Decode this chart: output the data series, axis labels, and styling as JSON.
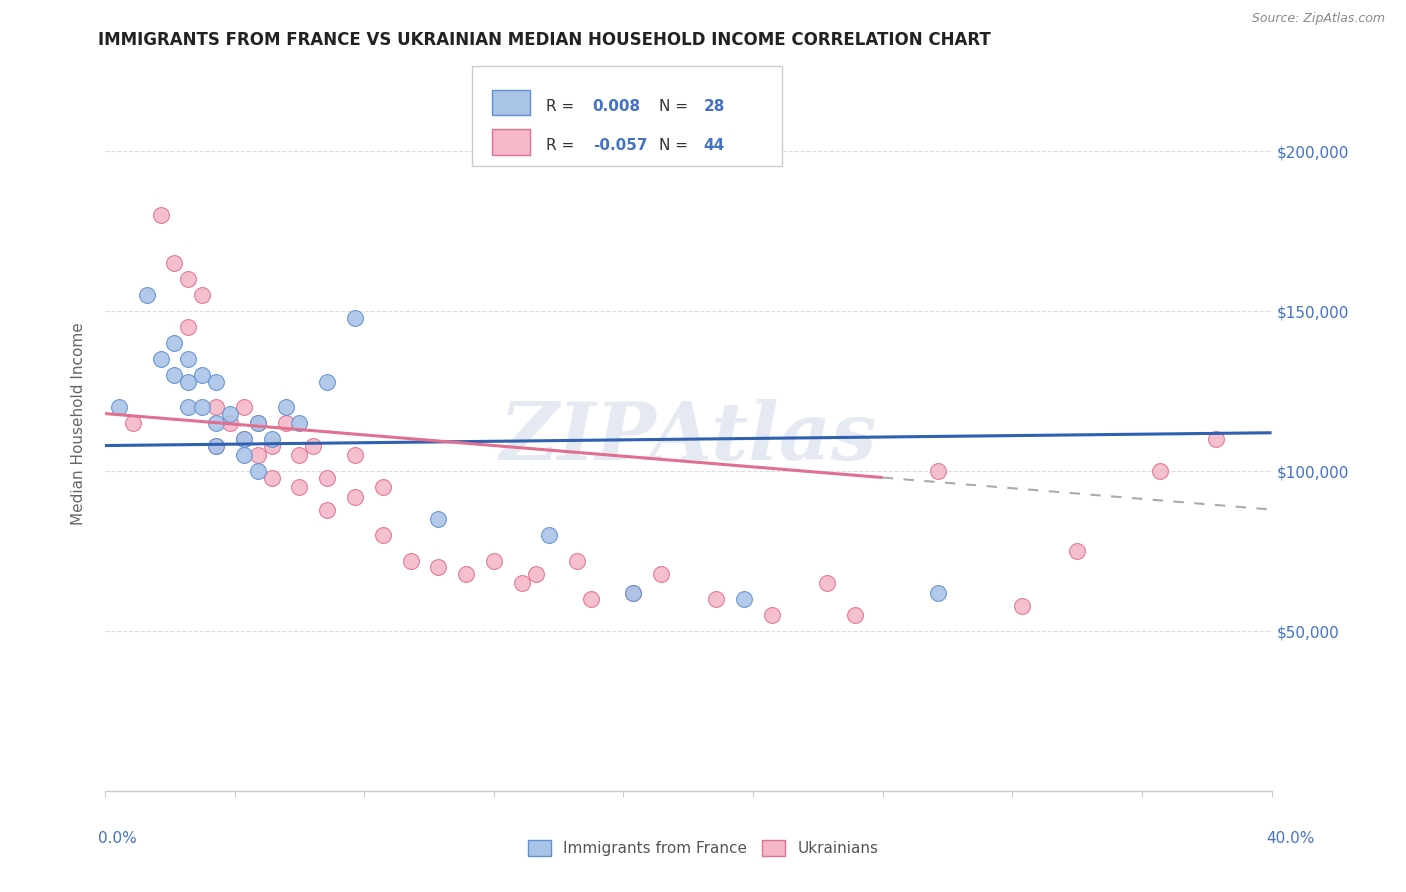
{
  "title": "IMMIGRANTS FROM FRANCE VS UKRAINIAN MEDIAN HOUSEHOLD INCOME CORRELATION CHART",
  "source": "Source: ZipAtlas.com",
  "ylabel": "Median Household Income",
  "yticks": [
    0,
    50000,
    100000,
    150000,
    200000
  ],
  "ytick_labels": [
    "",
    "$50,000",
    "$100,000",
    "$150,000",
    "$200,000"
  ],
  "xlim": [
    0.0,
    0.42
  ],
  "ylim": [
    0,
    230000
  ],
  "watermark": "ZIPAtlas",
  "color_france": "#aac4e8",
  "color_ukraine": "#f5b8c8",
  "color_france_edge": "#6090d0",
  "color_ukraine_edge": "#e07090",
  "color_france_line": "#3060b0",
  "color_ukraine_line": "#e07090",
  "france_scatter_x": [
    0.005,
    0.015,
    0.02,
    0.025,
    0.025,
    0.03,
    0.03,
    0.03,
    0.035,
    0.035,
    0.04,
    0.04,
    0.04,
    0.045,
    0.05,
    0.05,
    0.055,
    0.055,
    0.06,
    0.065,
    0.07,
    0.08,
    0.09,
    0.12,
    0.16,
    0.19,
    0.23,
    0.3
  ],
  "france_scatter_y": [
    120000,
    155000,
    135000,
    140000,
    130000,
    135000,
    128000,
    120000,
    130000,
    120000,
    128000,
    115000,
    108000,
    118000,
    110000,
    105000,
    115000,
    100000,
    110000,
    120000,
    115000,
    128000,
    148000,
    85000,
    80000,
    62000,
    60000,
    62000
  ],
  "ukraine_scatter_x": [
    0.01,
    0.02,
    0.025,
    0.03,
    0.03,
    0.035,
    0.04,
    0.04,
    0.045,
    0.05,
    0.05,
    0.055,
    0.055,
    0.06,
    0.06,
    0.065,
    0.07,
    0.07,
    0.075,
    0.08,
    0.08,
    0.09,
    0.09,
    0.1,
    0.1,
    0.11,
    0.12,
    0.13,
    0.14,
    0.15,
    0.155,
    0.17,
    0.175,
    0.19,
    0.2,
    0.22,
    0.24,
    0.26,
    0.27,
    0.3,
    0.33,
    0.35,
    0.38,
    0.4
  ],
  "ukraine_scatter_y": [
    115000,
    180000,
    165000,
    160000,
    145000,
    155000,
    120000,
    108000,
    115000,
    120000,
    110000,
    115000,
    105000,
    108000,
    98000,
    115000,
    105000,
    95000,
    108000,
    98000,
    88000,
    105000,
    92000,
    95000,
    80000,
    72000,
    70000,
    68000,
    72000,
    65000,
    68000,
    72000,
    60000,
    62000,
    68000,
    60000,
    55000,
    65000,
    55000,
    100000,
    58000,
    75000,
    100000,
    110000
  ],
  "france_line_x": [
    0.0,
    0.42
  ],
  "france_line_y": [
    108000,
    112000
  ],
  "ukraine_line_x": [
    0.0,
    0.42
  ],
  "ukraine_line_y": [
    118000,
    88000
  ],
  "background_color": "#ffffff",
  "grid_color": "#dddddd"
}
